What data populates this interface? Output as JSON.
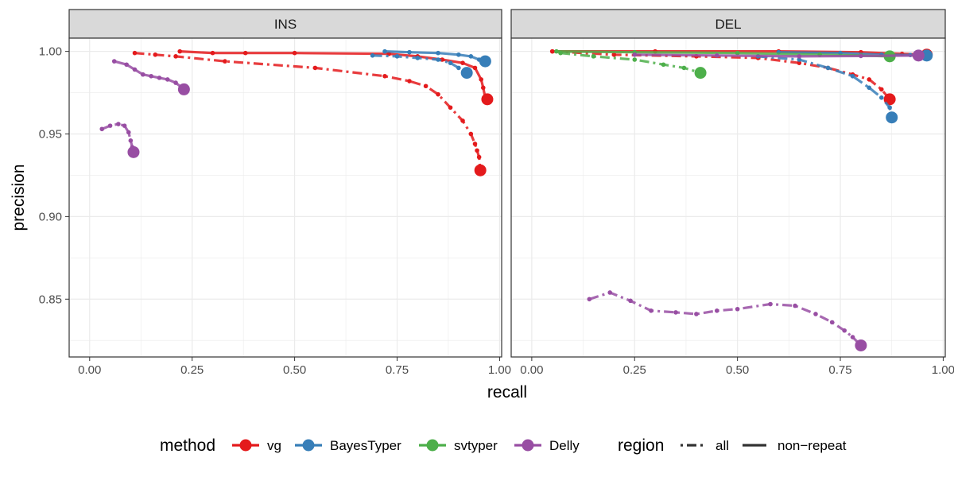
{
  "chart_data": {
    "type": "line",
    "xlabel": "recall",
    "ylabel": "precision",
    "xlim": [
      -0.05,
      1.005
    ],
    "ylim": [
      0.815,
      1.008
    ],
    "x_ticks": [
      0.0,
      0.25,
      0.5,
      0.75,
      1.0
    ],
    "x_tick_labels": [
      "0.00",
      "0.25",
      "0.50",
      "0.75",
      "1.00"
    ],
    "y_ticks": [
      0.85,
      0.9,
      0.95,
      1.0
    ],
    "y_tick_labels": [
      "0.85",
      "0.90",
      "0.95",
      "1.00"
    ],
    "grid": true,
    "legend_position": "bottom",
    "colors": {
      "vg": "#E41A1C",
      "BayesTyper": "#377EB8",
      "svtyper": "#4DAF4A",
      "Delly": "#984EA3"
    },
    "legend": {
      "method_title": "method",
      "methods": [
        "vg",
        "BayesTyper",
        "svtyper",
        "Delly"
      ],
      "region_title": "region",
      "regions": [
        "all",
        "non−repeat"
      ]
    },
    "panels": [
      {
        "title": "INS",
        "series": [
          {
            "method": "vg",
            "region": "non−repeat",
            "points": [
              [
                0.22,
                1.0
              ],
              [
                0.3,
                0.999
              ],
              [
                0.38,
                0.999
              ],
              [
                0.5,
                0.999
              ],
              [
                0.73,
                0.9985
              ],
              [
                0.8,
                0.997
              ],
              [
                0.86,
                0.995
              ],
              [
                0.91,
                0.993
              ],
              [
                0.94,
                0.99
              ],
              [
                0.955,
                0.983
              ],
              [
                0.96,
                0.978
              ],
              [
                0.965,
                0.972
              ],
              [
                0.97,
                0.971
              ]
            ]
          },
          {
            "method": "vg",
            "region": "all",
            "points": [
              [
                0.11,
                0.999
              ],
              [
                0.16,
                0.998
              ],
              [
                0.21,
                0.997
              ],
              [
                0.33,
                0.994
              ],
              [
                0.55,
                0.99
              ],
              [
                0.72,
                0.985
              ],
              [
                0.78,
                0.982
              ],
              [
                0.82,
                0.979
              ],
              [
                0.85,
                0.974
              ],
              [
                0.88,
                0.966
              ],
              [
                0.91,
                0.958
              ],
              [
                0.93,
                0.95
              ],
              [
                0.94,
                0.944
              ],
              [
                0.945,
                0.94
              ],
              [
                0.95,
                0.936
              ],
              [
                0.953,
                0.928
              ]
            ]
          },
          {
            "method": "BayesTyper",
            "region": "non−repeat",
            "points": [
              [
                0.72,
                1.0
              ],
              [
                0.78,
                0.9995
              ],
              [
                0.85,
                0.999
              ],
              [
                0.9,
                0.998
              ],
              [
                0.93,
                0.997
              ],
              [
                0.95,
                0.995
              ],
              [
                0.965,
                0.994
              ]
            ]
          },
          {
            "method": "BayesTyper",
            "region": "all",
            "points": [
              [
                0.69,
                0.9975
              ],
              [
                0.75,
                0.997
              ],
              [
                0.8,
                0.996
              ],
              [
                0.85,
                0.995
              ],
              [
                0.88,
                0.993
              ],
              [
                0.9,
                0.99
              ],
              [
                0.92,
                0.987
              ]
            ]
          },
          {
            "method": "Delly",
            "region": "non−repeat",
            "points": [
              [
                0.06,
                0.994
              ],
              [
                0.09,
                0.992
              ],
              [
                0.11,
                0.989
              ],
              [
                0.13,
                0.986
              ],
              [
                0.15,
                0.985
              ],
              [
                0.17,
                0.984
              ],
              [
                0.19,
                0.983
              ],
              [
                0.21,
                0.981
              ],
              [
                0.23,
                0.977
              ]
            ]
          },
          {
            "method": "Delly",
            "region": "all",
            "points": [
              [
                0.03,
                0.953
              ],
              [
                0.05,
                0.955
              ],
              [
                0.07,
                0.956
              ],
              [
                0.085,
                0.955
              ],
              [
                0.095,
                0.951
              ],
              [
                0.1,
                0.946
              ],
              [
                0.104,
                0.942
              ],
              [
                0.107,
                0.939
              ]
            ]
          }
        ]
      },
      {
        "title": "DEL",
        "series": [
          {
            "method": "vg",
            "region": "non−repeat",
            "points": [
              [
                0.05,
                1.0
              ],
              [
                0.3,
                1.0
              ],
              [
                0.6,
                1.0
              ],
              [
                0.8,
                0.9995
              ],
              [
                0.9,
                0.9985
              ],
              [
                0.96,
                0.998
              ]
            ]
          },
          {
            "method": "vg",
            "region": "all",
            "points": [
              [
                0.05,
                1.0
              ],
              [
                0.2,
                0.998
              ],
              [
                0.4,
                0.997
              ],
              [
                0.55,
                0.996
              ],
              [
                0.65,
                0.993
              ],
              [
                0.72,
                0.99
              ],
              [
                0.78,
                0.986
              ],
              [
                0.82,
                0.983
              ],
              [
                0.85,
                0.977
              ],
              [
                0.87,
                0.971
              ]
            ]
          },
          {
            "method": "BayesTyper",
            "region": "non−repeat",
            "points": [
              [
                0.6,
                0.9995
              ],
              [
                0.75,
                0.999
              ],
              [
                0.85,
                0.998
              ],
              [
                0.92,
                0.9978
              ],
              [
                0.96,
                0.9975
              ]
            ]
          },
          {
            "method": "BayesTyper",
            "region": "all",
            "points": [
              [
                0.55,
                0.997
              ],
              [
                0.65,
                0.995
              ],
              [
                0.72,
                0.99
              ],
              [
                0.78,
                0.985
              ],
              [
                0.82,
                0.978
              ],
              [
                0.85,
                0.972
              ],
              [
                0.87,
                0.966
              ],
              [
                0.875,
                0.96
              ]
            ]
          },
          {
            "method": "svtyper",
            "region": "non−repeat",
            "points": [
              [
                0.06,
                1.0
              ],
              [
                0.25,
                0.9995
              ],
              [
                0.5,
                0.999
              ],
              [
                0.7,
                0.998
              ],
              [
                0.8,
                0.9975
              ],
              [
                0.87,
                0.997
              ]
            ]
          },
          {
            "method": "svtyper",
            "region": "all",
            "points": [
              [
                0.07,
                0.999
              ],
              [
                0.15,
                0.997
              ],
              [
                0.25,
                0.995
              ],
              [
                0.32,
                0.992
              ],
              [
                0.37,
                0.99
              ],
              [
                0.41,
                0.987
              ]
            ]
          },
          {
            "method": "Delly",
            "region": "non−repeat",
            "points": [
              [
                0.25,
                0.998
              ],
              [
                0.45,
                0.9975
              ],
              [
                0.65,
                0.997
              ],
              [
                0.8,
                0.9972
              ],
              [
                0.94,
                0.9975
              ]
            ]
          },
          {
            "method": "Delly",
            "region": "all",
            "points": [
              [
                0.14,
                0.85
              ],
              [
                0.19,
                0.854
              ],
              [
                0.24,
                0.849
              ],
              [
                0.29,
                0.843
              ],
              [
                0.35,
                0.842
              ],
              [
                0.4,
                0.841
              ],
              [
                0.45,
                0.843
              ],
              [
                0.5,
                0.844
              ],
              [
                0.58,
                0.847
              ],
              [
                0.64,
                0.846
              ],
              [
                0.69,
                0.841
              ],
              [
                0.73,
                0.836
              ],
              [
                0.76,
                0.831
              ],
              [
                0.78,
                0.827
              ],
              [
                0.8,
                0.822
              ]
            ]
          }
        ]
      }
    ]
  }
}
